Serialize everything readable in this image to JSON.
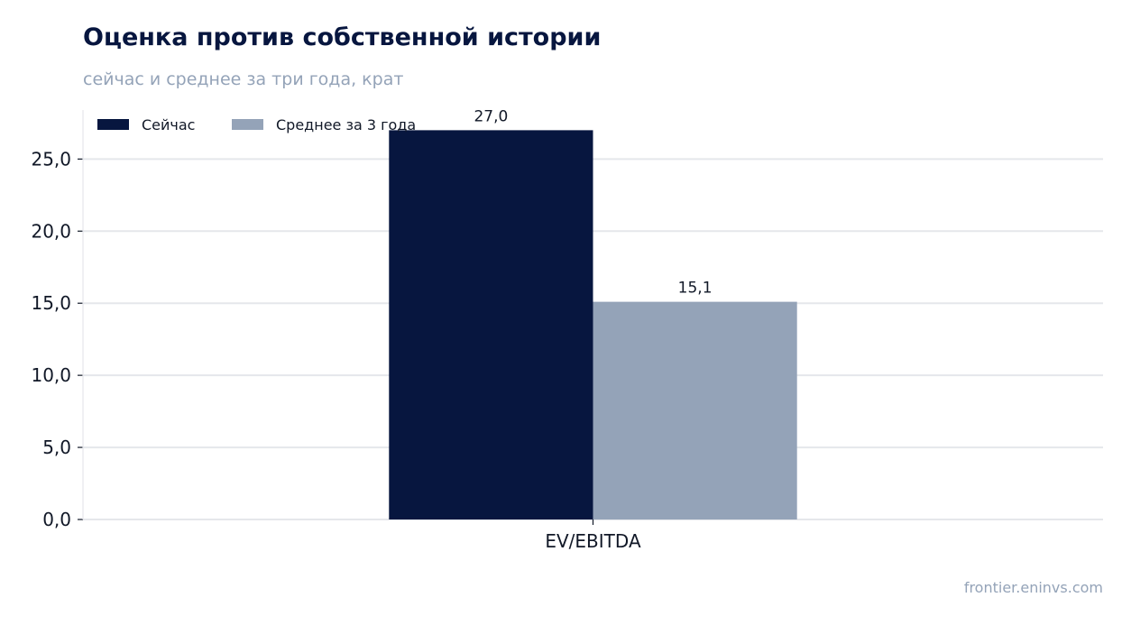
{
  "header": {
    "title": "Оценка против собственной истории",
    "subtitle": "сейчас и среднее за три года, крат"
  },
  "footer": {
    "source": "frontier.eninvs.com"
  },
  "colors": {
    "current": "#07163f",
    "average": "#94a3b8",
    "grid": "#e5e7eb",
    "text": "#111827"
  },
  "chart_data": {
    "type": "bar",
    "title": "Оценка против собственной истории",
    "subtitle": "сейчас и среднее за три года, крат",
    "categories": [
      "EV/EBITDA"
    ],
    "series": [
      {
        "name": "Сейчас",
        "values": [
          27.0
        ],
        "labels": [
          "27,0"
        ],
        "color": "#07163f"
      },
      {
        "name": "Среднее за 3 года",
        "values": [
          15.1
        ],
        "labels": [
          "15,1"
        ],
        "color": "#94a3b8"
      }
    ],
    "ylim": [
      0,
      28.4
    ],
    "yticks": [
      0,
      5,
      10,
      15,
      20,
      25
    ],
    "ytick_labels": [
      "0,0",
      "5,0",
      "10,0",
      "15,0",
      "20,0",
      "25,0"
    ],
    "xlabel": "",
    "ylabel": "",
    "grid": true,
    "legend": "top-left"
  }
}
